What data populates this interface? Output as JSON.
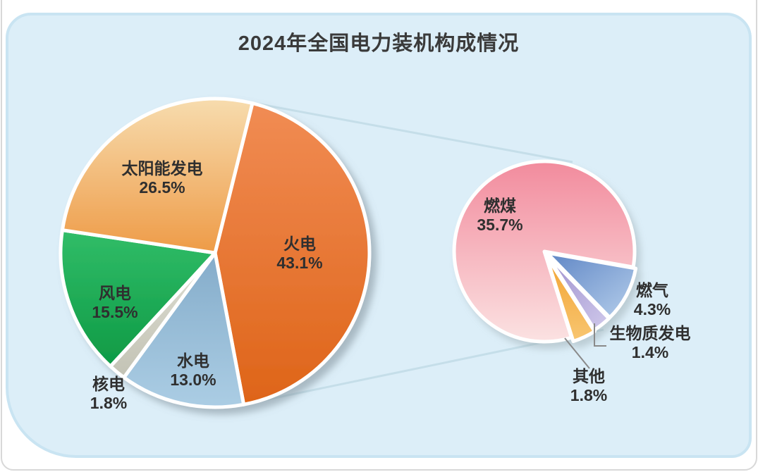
{
  "title": "2024年全国电力装机构成情况",
  "colors": {
    "card_bg": "#DCEEF8",
    "card_edge": "#C9E4F2",
    "frame_border": "#D8D8D8",
    "connector_line": "#C5DEE9",
    "leader_line": "#8A8A8A",
    "title_text": "#3A3A3A",
    "label_text": "#2F2F2F"
  },
  "chart_data": {
    "type": "pie",
    "variant": "pie-of-pie",
    "title": "2024年全国电力装机构成情况",
    "legend_position": "none",
    "main_pie": {
      "start_angle_deg": 14,
      "direction": "clockwise",
      "slices": [
        {
          "key": "fire",
          "label": "火电",
          "value": 43.1,
          "pct": "43.1%",
          "color_from": "#F18C54",
          "color_to": "#DE6418",
          "grad_dir": "v",
          "explode": 0
        },
        {
          "key": "hydro",
          "label": "水电",
          "value": 13.0,
          "pct": "13.0%",
          "color_from": "#84ACCA",
          "color_to": "#ABCDE4",
          "grad_dir": "v",
          "explode": 0
        },
        {
          "key": "nuclear",
          "label": "核电",
          "value": 1.8,
          "pct": "1.8%",
          "color_from": "#DEDED3",
          "color_to": "#C3C3B5",
          "grad_dir": "v",
          "explode": 0
        },
        {
          "key": "wind",
          "label": "风电",
          "value": 15.5,
          "pct": "15.5%",
          "color_from": "#31BD68",
          "color_to": "#0E9A45",
          "grad_dir": "v",
          "explode": 0
        },
        {
          "key": "solar",
          "label": "太阳能发电",
          "value": 26.5,
          "pct": "26.5%",
          "color_from": "#F7DCAE",
          "color_to": "#EE9B47",
          "grad_dir": "v",
          "explode": 0
        }
      ]
    },
    "secondary_pie": {
      "start_angle_deg": 100,
      "direction": "clockwise",
      "breakdown_of": "火电",
      "slices": [
        {
          "key": "gas",
          "label": "燃气",
          "value": 4.3,
          "pct": "4.3%",
          "color_from": "#5F86C5",
          "color_to": "#B5CEEB",
          "grad_dir": "d",
          "explode": 4
        },
        {
          "key": "biomass",
          "label": "生物质发电",
          "value": 1.4,
          "pct": "1.4%",
          "color_from": "#9C8ECC",
          "color_to": "#D0C9EB",
          "grad_dir": "d",
          "explode": 4
        },
        {
          "key": "other",
          "label": "其他",
          "value": 1.8,
          "pct": "1.8%",
          "color_from": "#F2A231",
          "color_to": "#F8C671",
          "grad_dir": "v",
          "explode": 6
        },
        {
          "key": "coal",
          "label": "燃煤",
          "value": 35.7,
          "pct": "35.7%",
          "color_from": "#F28B9D",
          "color_to": "#FBE2E2",
          "grad_dir": "v",
          "explode": 0
        }
      ]
    }
  }
}
